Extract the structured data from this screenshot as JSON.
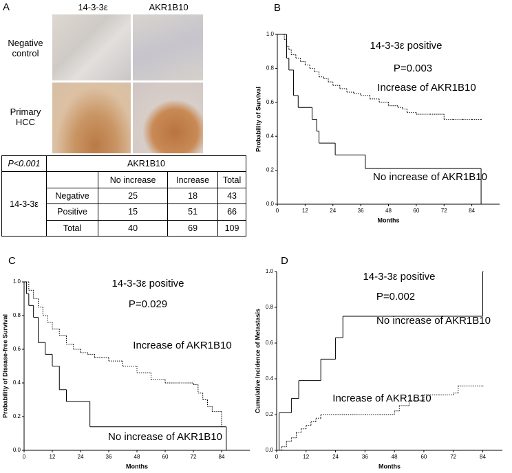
{
  "panel_a": {
    "label": "A",
    "columns": [
      "14-3-3ε",
      "AKR1B10"
    ],
    "rows": [
      "Negative control",
      "Primary HCC"
    ],
    "table": {
      "corner": "P<0.001",
      "column_group": "AKR1B10",
      "row_group": "14-3-3ε",
      "header": [
        "No increase",
        "Increase",
        "Total"
      ],
      "rows": [
        [
          "Negative",
          25,
          18,
          43
        ],
        [
          "Positive",
          15,
          51,
          66
        ],
        [
          "Total",
          40,
          69,
          109
        ]
      ]
    }
  },
  "chart_data": [
    {
      "type": "line",
      "label": "B",
      "step": true,
      "annotations": [
        "14-3-3ε positive",
        "P=0.003"
      ],
      "x_label": "Months",
      "y_label": "Probability of Survival",
      "xlim": [
        0,
        96
      ],
      "ylim": [
        0,
        1
      ],
      "xticks": [
        0,
        12,
        24,
        36,
        48,
        60,
        72,
        84
      ],
      "yticks": [
        {
          "value": 0,
          "label": "0.0"
        },
        {
          "value": 0.2,
          "label": "0.2"
        },
        {
          "value": 0.4,
          "label": "0.4"
        },
        {
          "value": 0.6,
          "label": "0.6"
        },
        {
          "value": 0.8,
          "label": "0.8"
        },
        {
          "value": 1,
          "label": "1.0"
        }
      ],
      "series": [
        {
          "name": "Increase of AKR1B10",
          "color": "#000000",
          "line_style": "dotted",
          "x": [
            0,
            3,
            4,
            5,
            6,
            8,
            10,
            12,
            14,
            16,
            18,
            20,
            22,
            24,
            27,
            30,
            33,
            36,
            40,
            44,
            48,
            52,
            54,
            56,
            60,
            66,
            72,
            76,
            80,
            84,
            88
          ],
          "values": [
            1,
            0.97,
            0.93,
            0.91,
            0.88,
            0.86,
            0.84,
            0.82,
            0.8,
            0.78,
            0.75,
            0.74,
            0.72,
            0.7,
            0.68,
            0.66,
            0.65,
            0.64,
            0.62,
            0.6,
            0.58,
            0.57,
            0.56,
            0.54,
            0.53,
            0.53,
            0.5,
            0.5,
            0.5,
            0.5,
            0.5
          ]
        },
        {
          "name": "No increase of AKR1B10",
          "color": "#000000",
          "line_style": "solid",
          "x": [
            0,
            4,
            5,
            7,
            9,
            15,
            17,
            18,
            25,
            38,
            88
          ],
          "values": [
            1,
            0.86,
            0.79,
            0.64,
            0.57,
            0.5,
            0.43,
            0.36,
            0.29,
            0.21,
            0
          ]
        }
      ]
    },
    {
      "type": "line",
      "label": "C",
      "step": true,
      "annotations": [
        "14-3-3ε positive",
        "P=0.029"
      ],
      "x_label": "Months",
      "y_label": "Probability of Disease-free Survival",
      "xlim": [
        0,
        96
      ],
      "ylim": [
        0,
        1
      ],
      "xticks": [
        0,
        12,
        24,
        36,
        48,
        60,
        72,
        84
      ],
      "yticks": [
        {
          "value": 0,
          "label": "0.0"
        },
        {
          "value": 0.2,
          "label": "0.2"
        },
        {
          "value": 0.4,
          "label": "0.4"
        },
        {
          "value": 0.6,
          "label": "0.6"
        },
        {
          "value": 0.8,
          "label": "0.8"
        },
        {
          "value": 1,
          "label": "1.0"
        }
      ],
      "series": [
        {
          "name": "Increase of AKR1B10",
          "color": "#000000",
          "line_style": "dotted",
          "x": [
            0,
            2,
            4,
            6,
            8,
            10,
            12,
            15,
            18,
            21,
            24,
            27,
            30,
            33,
            36,
            42,
            48,
            54,
            60,
            66,
            72,
            74,
            76,
            78,
            80,
            84
          ],
          "values": [
            1,
            0.95,
            0.9,
            0.85,
            0.8,
            0.76,
            0.72,
            0.68,
            0.63,
            0.6,
            0.58,
            0.57,
            0.55,
            0.55,
            0.53,
            0.5,
            0.46,
            0.42,
            0.4,
            0.4,
            0.39,
            0.34,
            0.3,
            0.26,
            0.23,
            0.14
          ]
        },
        {
          "name": "No increase of AKR1B10",
          "color": "#000000",
          "line_style": "solid",
          "x": [
            0,
            1,
            2,
            4,
            6,
            9,
            12,
            15,
            18,
            28,
            86
          ],
          "values": [
            1,
            0.93,
            0.86,
            0.79,
            0.64,
            0.57,
            0.5,
            0.36,
            0.29,
            0.14,
            0
          ]
        }
      ]
    },
    {
      "type": "line",
      "label": "D",
      "step": true,
      "annotations": [
        "14-3-3ε positive",
        "P=0.002"
      ],
      "x_label": "Months",
      "y_label": "Cumulative Incidence of Metastasis",
      "xlim": [
        0,
        92
      ],
      "ylim": [
        0,
        1
      ],
      "xticks": [
        0,
        12,
        24,
        36,
        48,
        60,
        72,
        84
      ],
      "yticks": [
        {
          "value": 0,
          "label": "0.0"
        },
        {
          "value": 0.2,
          "label": "0.2"
        },
        {
          "value": 0.4,
          "label": "0.4"
        },
        {
          "value": 0.6,
          "label": "0.6"
        },
        {
          "value": 0.8,
          "label": "0.8"
        },
        {
          "value": 1,
          "label": "1.0"
        }
      ],
      "series": [
        {
          "name": "No increase of AKR1B10",
          "color": "#000000",
          "line_style": "solid",
          "x": [
            0,
            1,
            6,
            9,
            18,
            24,
            27,
            84
          ],
          "values": [
            0,
            0.21,
            0.29,
            0.39,
            0.51,
            0.63,
            0.75,
            1
          ]
        },
        {
          "name": "Increase of AKR1B10",
          "color": "#000000",
          "line_style": "dotted",
          "x": [
            0,
            2,
            4,
            6,
            8,
            10,
            12,
            14,
            16,
            18,
            24,
            30,
            36,
            42,
            48,
            50,
            54,
            60,
            66,
            72,
            74,
            80,
            84
          ],
          "values": [
            0,
            0.02,
            0.05,
            0.07,
            0.1,
            0.12,
            0.14,
            0.16,
            0.18,
            0.2,
            0.2,
            0.2,
            0.2,
            0.2,
            0.22,
            0.25,
            0.28,
            0.31,
            0.31,
            0.32,
            0.36,
            0.36,
            0.36
          ]
        }
      ]
    }
  ]
}
